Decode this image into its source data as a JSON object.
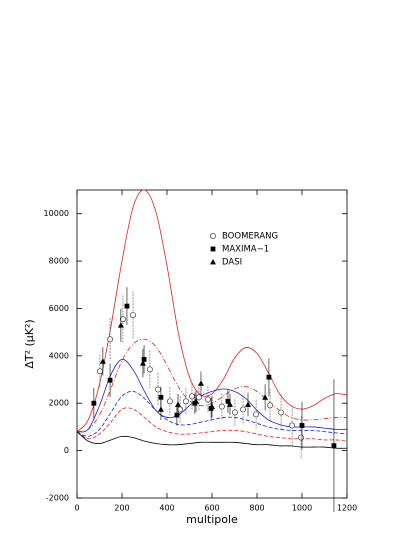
{
  "chart_data": {
    "type": "scatter",
    "x_label": "multipole",
    "y_label": "ΔT² (μK²)",
    "xlim": [
      0,
      1200
    ],
    "ylim": [
      -2000,
      11000
    ],
    "xticks": [
      0,
      200,
      400,
      600,
      800,
      1000,
      1200
    ],
    "yticks": [
      -2000,
      0,
      2000,
      4000,
      6000,
      8000,
      10000
    ],
    "series": [
      {
        "name": "BOOMERANG",
        "marker": "circle",
        "color": "#555555",
        "x": [
          102,
          147,
          204,
          249,
          324,
          360,
          413,
          458,
          484,
          511,
          542,
          582,
          644,
          702,
          738,
          796,
          858,
          907,
          956,
          996
        ],
        "values": [
          3350,
          4700,
          5550,
          5720,
          3430,
          2580,
          2080,
          1740,
          2080,
          2290,
          2250,
          2160,
          1860,
          1610,
          1740,
          1530,
          1910,
          1610,
          1060,
          550
        ],
        "errors": [
          700,
          900,
          1000,
          1000,
          800,
          700,
          600,
          550,
          550,
          550,
          550,
          550,
          550,
          550,
          600,
          600,
          700,
          750,
          850,
          900
        ]
      },
      {
        "name": "MAXIMA−1",
        "marker": "square",
        "color": "#000000",
        "x": [
          75,
          147,
          222,
          298,
          373,
          444,
          524,
          596,
          671,
          853,
          1000,
          1142
        ],
        "values": [
          2000,
          2970,
          6100,
          3850,
          2250,
          1500,
          2000,
          1780,
          2080,
          3100,
          1060,
          210
        ],
        "errors": [
          650,
          700,
          800,
          600,
          450,
          450,
          450,
          450,
          500,
          800,
          1000,
          2800
        ]
      },
      {
        "name": "DASI",
        "marker": "triangle",
        "color": "#000000",
        "x": [
          115,
          195,
          293,
          373,
          449,
          529,
          551,
          600,
          680,
          760,
          836
        ],
        "values": [
          3770,
          5290,
          3690,
          1740,
          1950,
          2080,
          2840,
          1860,
          1950,
          1950,
          2250
        ],
        "errors": [
          600,
          700,
          600,
          450,
          450,
          450,
          500,
          450,
          450,
          500,
          550
        ]
      }
    ],
    "curve_x": [
      0,
      50,
      100,
      150,
      200,
      250,
      300,
      350,
      400,
      450,
      500,
      550,
      600,
      650,
      700,
      750,
      800,
      850,
      900,
      950,
      1000,
      1050,
      1100,
      1150,
      1200
    ],
    "curves": [
      {
        "color": "#e02020",
        "dash": "solid",
        "values": [
          800,
          1300,
          2800,
          5200,
          8000,
          10300,
          11000,
          10100,
          7800,
          5000,
          3100,
          2350,
          2400,
          3000,
          3900,
          4350,
          4100,
          3300,
          2400,
          1900,
          1750,
          1900,
          2200,
          2400,
          2350
        ]
      },
      {
        "color": "#e02020",
        "dash": "dashdot",
        "values": [
          800,
          900,
          1500,
          2600,
          3800,
          4500,
          4700,
          4400,
          3600,
          2700,
          2100,
          1900,
          2000,
          2300,
          2600,
          2700,
          2500,
          2100,
          1700,
          1400,
          1300,
          1300,
          1350,
          1400,
          1400
        ]
      },
      {
        "color": "#2020d0",
        "dash": "solid",
        "values": [
          800,
          900,
          1900,
          3200,
          3850,
          3400,
          2500,
          1700,
          1400,
          1500,
          1900,
          2300,
          2500,
          2600,
          2500,
          2200,
          1700,
          1300,
          1100,
          1000,
          1000,
          1000,
          950,
          900,
          900
        ]
      },
      {
        "color": "#2020d0",
        "dash": "dashed",
        "values": [
          800,
          600,
          900,
          1600,
          2300,
          2500,
          2200,
          1700,
          1300,
          1100,
          1100,
          1200,
          1300,
          1400,
          1400,
          1300,
          1150,
          1000,
          900,
          850,
          850,
          850,
          800,
          750,
          700
        ]
      },
      {
        "color": "#e02020",
        "dash": "dashed",
        "values": [
          800,
          500,
          700,
          1200,
          1750,
          1750,
          1400,
          1000,
          800,
          700,
          700,
          750,
          800,
          850,
          850,
          800,
          700,
          600,
          550,
          500,
          500,
          500,
          450,
          450,
          400
        ]
      },
      {
        "color": "#000000",
        "dash": "solid",
        "values": [
          800,
          400,
          300,
          450,
          600,
          550,
          400,
          300,
          250,
          250,
          300,
          350,
          350,
          350,
          350,
          300,
          250,
          250,
          200,
          200,
          150,
          150,
          150,
          100,
          100
        ]
      }
    ]
  }
}
